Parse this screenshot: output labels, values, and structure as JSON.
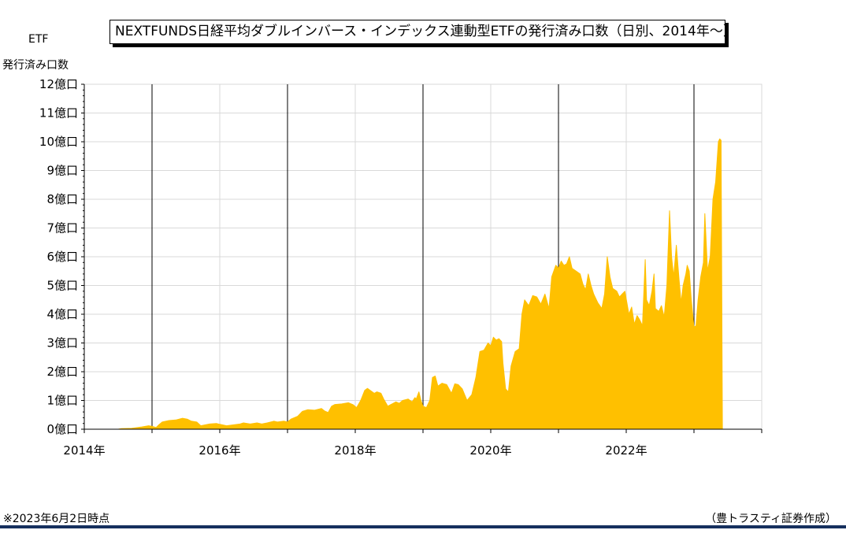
{
  "title": "NEXTFUNDS日経平均ダブルインバース・インデックス連動型ETFの発行済み口数（日別、2014年～）",
  "y_unit": [
    "ETF",
    "発行済み口数"
  ],
  "footnote": "※2023年6月2日時点",
  "credit": "（豊トラスティ証券作成）",
  "colors": {
    "fill": "#FFC000",
    "grid": "#D9D9D9",
    "year_line": "#000000",
    "axis": "#000000",
    "footer_rule": "#16305E"
  },
  "chart_data": {
    "type": "area",
    "title": "NEXTFUNDS日経平均ダブルインバース・インデックス連動型ETFの発行済み口数（日別、2014年～）",
    "xlabel": "",
    "ylabel": "ETF 発行済み口数",
    "xlim": [
      2014.0,
      2024.0
    ],
    "ylim": [
      0,
      12
    ],
    "y_unit": "億口",
    "y_ticks": [
      0,
      1,
      2,
      3,
      4,
      5,
      6,
      7,
      8,
      9,
      10,
      11,
      12
    ],
    "y_tick_labels": [
      "0億口",
      "1億口",
      "2億口",
      "3億口",
      "4億口",
      "5億口",
      "6億口",
      "7億口",
      "8億口",
      "9億口",
      "10億口",
      "11億口",
      "12億口"
    ],
    "x_tick_labels": [
      {
        "x": 2014,
        "label": "2014年"
      },
      {
        "x": 2016,
        "label": "2016年"
      },
      {
        "x": 2018,
        "label": "2018年"
      },
      {
        "x": 2020,
        "label": "2020年"
      },
      {
        "x": 2022,
        "label": "2022年"
      }
    ],
    "year_lines": [
      2015,
      2017,
      2019,
      2021,
      2023
    ],
    "grid": true,
    "legend": "none",
    "series": [
      {
        "points": [
          [
            2014.5,
            0.0
          ],
          [
            2014.55,
            0.02
          ],
          [
            2014.7,
            0.03
          ],
          [
            2014.85,
            0.08
          ],
          [
            2014.95,
            0.12
          ],
          [
            2015.0,
            0.1
          ],
          [
            2015.06,
            0.06
          ],
          [
            2015.1,
            0.15
          ],
          [
            2015.15,
            0.25
          ],
          [
            2015.25,
            0.3
          ],
          [
            2015.35,
            0.32
          ],
          [
            2015.45,
            0.38
          ],
          [
            2015.52,
            0.35
          ],
          [
            2015.58,
            0.28
          ],
          [
            2015.66,
            0.25
          ],
          [
            2015.72,
            0.12
          ],
          [
            2015.85,
            0.18
          ],
          [
            2015.95,
            0.2
          ],
          [
            2016.0,
            0.17
          ],
          [
            2016.1,
            0.12
          ],
          [
            2016.2,
            0.15
          ],
          [
            2016.3,
            0.18
          ],
          [
            2016.35,
            0.22
          ],
          [
            2016.45,
            0.18
          ],
          [
            2016.55,
            0.22
          ],
          [
            2016.62,
            0.18
          ],
          [
            2016.7,
            0.22
          ],
          [
            2016.8,
            0.28
          ],
          [
            2016.85,
            0.25
          ],
          [
            2016.95,
            0.28
          ],
          [
            2017.0,
            0.25
          ],
          [
            2017.05,
            0.35
          ],
          [
            2017.15,
            0.45
          ],
          [
            2017.22,
            0.62
          ],
          [
            2017.3,
            0.68
          ],
          [
            2017.4,
            0.66
          ],
          [
            2017.5,
            0.72
          ],
          [
            2017.55,
            0.63
          ],
          [
            2017.6,
            0.58
          ],
          [
            2017.65,
            0.8
          ],
          [
            2017.7,
            0.86
          ],
          [
            2017.8,
            0.88
          ],
          [
            2017.9,
            0.92
          ],
          [
            2017.97,
            0.85
          ],
          [
            2018.02,
            0.75
          ],
          [
            2018.08,
            1.0
          ],
          [
            2018.14,
            1.35
          ],
          [
            2018.18,
            1.42
          ],
          [
            2018.22,
            1.35
          ],
          [
            2018.28,
            1.25
          ],
          [
            2018.32,
            1.3
          ],
          [
            2018.38,
            1.25
          ],
          [
            2018.42,
            1.05
          ],
          [
            2018.48,
            0.8
          ],
          [
            2018.52,
            0.85
          ],
          [
            2018.6,
            0.95
          ],
          [
            2018.65,
            0.9
          ],
          [
            2018.7,
            1.0
          ],
          [
            2018.78,
            1.05
          ],
          [
            2018.84,
            0.95
          ],
          [
            2018.88,
            1.1
          ],
          [
            2018.9,
            1.05
          ],
          [
            2018.94,
            1.3
          ],
          [
            2018.97,
            1.0
          ],
          [
            2019.0,
            0.8
          ],
          [
            2019.05,
            0.75
          ],
          [
            2019.1,
            1.0
          ],
          [
            2019.14,
            1.8
          ],
          [
            2019.18,
            1.85
          ],
          [
            2019.22,
            1.5
          ],
          [
            2019.28,
            1.6
          ],
          [
            2019.35,
            1.55
          ],
          [
            2019.42,
            1.25
          ],
          [
            2019.47,
            1.58
          ],
          [
            2019.52,
            1.55
          ],
          [
            2019.58,
            1.4
          ],
          [
            2019.65,
            1.0
          ],
          [
            2019.72,
            1.2
          ],
          [
            2019.78,
            1.8
          ],
          [
            2019.84,
            2.7
          ],
          [
            2019.9,
            2.75
          ],
          [
            2019.96,
            3.0
          ],
          [
            2020.0,
            2.9
          ],
          [
            2020.04,
            3.2
          ],
          [
            2020.08,
            3.1
          ],
          [
            2020.12,
            3.15
          ],
          [
            2020.16,
            3.05
          ],
          [
            2020.18,
            2.3
          ],
          [
            2020.22,
            1.4
          ],
          [
            2020.26,
            1.3
          ],
          [
            2020.3,
            2.2
          ],
          [
            2020.36,
            2.7
          ],
          [
            2020.42,
            2.8
          ],
          [
            2020.46,
            4.0
          ],
          [
            2020.5,
            4.5
          ],
          [
            2020.56,
            4.3
          ],
          [
            2020.62,
            4.65
          ],
          [
            2020.68,
            4.6
          ],
          [
            2020.74,
            4.35
          ],
          [
            2020.8,
            4.7
          ],
          [
            2020.86,
            4.2
          ],
          [
            2020.9,
            5.3
          ],
          [
            2020.96,
            5.7
          ],
          [
            2021.0,
            5.6
          ],
          [
            2021.04,
            5.85
          ],
          [
            2021.08,
            5.7
          ],
          [
            2021.12,
            5.75
          ],
          [
            2021.16,
            6.0
          ],
          [
            2021.2,
            5.6
          ],
          [
            2021.26,
            5.5
          ],
          [
            2021.32,
            5.4
          ],
          [
            2021.36,
            5.05
          ],
          [
            2021.4,
            4.85
          ],
          [
            2021.44,
            5.4
          ],
          [
            2021.48,
            5.0
          ],
          [
            2021.52,
            4.7
          ],
          [
            2021.58,
            4.4
          ],
          [
            2021.64,
            4.2
          ],
          [
            2021.68,
            4.7
          ],
          [
            2021.72,
            6.0
          ],
          [
            2021.76,
            5.3
          ],
          [
            2021.8,
            4.9
          ],
          [
            2021.86,
            4.8
          ],
          [
            2021.9,
            4.6
          ],
          [
            2021.94,
            4.7
          ],
          [
            2021.98,
            4.8
          ],
          [
            2022.04,
            4.0
          ],
          [
            2022.08,
            4.25
          ],
          [
            2022.12,
            3.65
          ],
          [
            2022.16,
            3.95
          ],
          [
            2022.2,
            3.8
          ],
          [
            2022.24,
            3.6
          ],
          [
            2022.28,
            5.9
          ],
          [
            2022.3,
            4.5
          ],
          [
            2022.34,
            4.3
          ],
          [
            2022.38,
            4.8
          ],
          [
            2022.41,
            5.4
          ],
          [
            2022.43,
            4.2
          ],
          [
            2022.48,
            4.1
          ],
          [
            2022.52,
            4.3
          ],
          [
            2022.56,
            3.9
          ],
          [
            2022.6,
            5.0
          ],
          [
            2022.64,
            7.6
          ],
          [
            2022.67,
            6.0
          ],
          [
            2022.7,
            5.3
          ],
          [
            2022.74,
            6.4
          ],
          [
            2022.78,
            5.2
          ],
          [
            2022.81,
            4.4
          ],
          [
            2022.84,
            5.0
          ],
          [
            2022.88,
            5.4
          ],
          [
            2022.9,
            5.7
          ],
          [
            2022.93,
            5.5
          ],
          [
            2022.96,
            4.5
          ],
          [
            2023.0,
            3.55
          ],
          [
            2023.03,
            3.6
          ],
          [
            2023.06,
            4.5
          ],
          [
            2023.1,
            5.3
          ],
          [
            2023.14,
            5.8
          ],
          [
            2023.16,
            7.5
          ],
          [
            2023.2,
            5.5
          ],
          [
            2023.24,
            6.0
          ],
          [
            2023.28,
            8.0
          ],
          [
            2023.32,
            8.6
          ],
          [
            2023.36,
            10.0
          ],
          [
            2023.38,
            10.1
          ],
          [
            2023.4,
            10.05
          ],
          [
            2023.42,
            0.0
          ]
        ]
      }
    ]
  }
}
